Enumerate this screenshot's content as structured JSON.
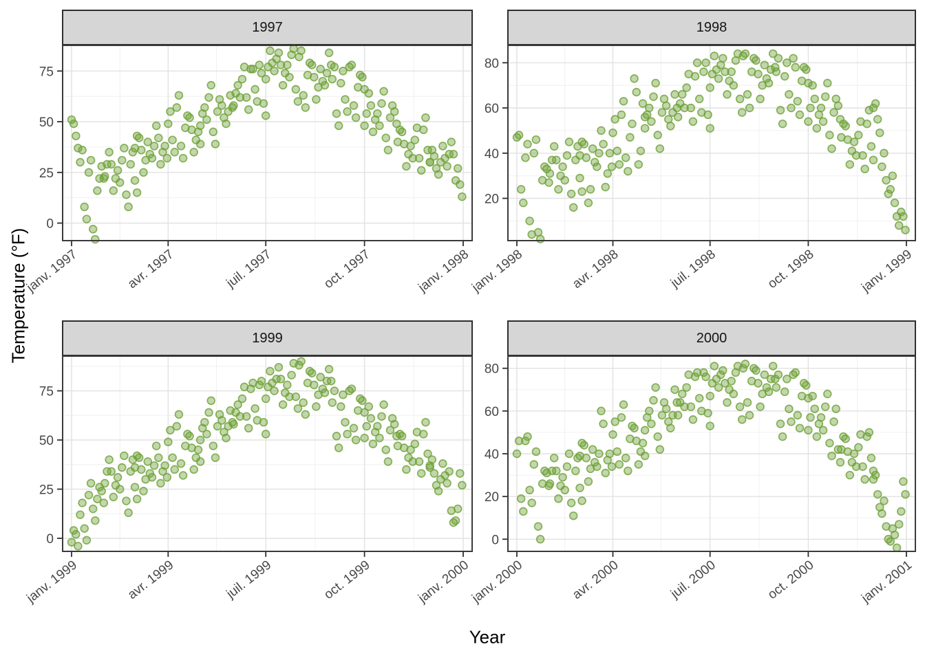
{
  "figure": {
    "kind": "faceted scatter plot (ggplot2 style)",
    "background": "#ffffff"
  },
  "theme": {
    "strip_fill": "#d6d6d6",
    "strip_border": "#2e2e2e",
    "panel_border": "#3a3a3a",
    "grid_major": "#e2e2e2",
    "grid_minor": "#f0f0f0",
    "tick_color": "#2f2f2f",
    "tick_label_color": "#474747",
    "point_color": "#6ea037",
    "point_fill_opacity": 0.42,
    "point_stroke_opacity": 0.8
  },
  "chart_data": {
    "type": "scatter",
    "title": "",
    "xlabel": "Year",
    "ylabel": "Temperature (°F)",
    "x_unit": "day_of_year",
    "legend": "none",
    "grid": "major and minor, light gray on white",
    "xlim": [
      -8,
      375
    ],
    "x_tick_days": [
      1,
      91,
      182,
      274,
      366
    ],
    "x_minor_days": [
      46,
      136,
      228,
      320
    ],
    "days": [
      1,
      5,
      9,
      13,
      17,
      21,
      25,
      29,
      32,
      36,
      40,
      44,
      48,
      52,
      56,
      60,
      60,
      64,
      68,
      72,
      76,
      80,
      84,
      88,
      91,
      95,
      99,
      103,
      107,
      111,
      115,
      119,
      121,
      125,
      129,
      133,
      137,
      141,
      145,
      149,
      152,
      156,
      160,
      164,
      168,
      172,
      176,
      180,
      182,
      186,
      190,
      194,
      198,
      202,
      206,
      210,
      213,
      217,
      221,
      225,
      229,
      233,
      237,
      241,
      244,
      248,
      252,
      256,
      260,
      264,
      268,
      272,
      274,
      278,
      282,
      286,
      290,
      294,
      298,
      302,
      305,
      309,
      313,
      317,
      321,
      325,
      329,
      333,
      335,
      339,
      343,
      347,
      351,
      355,
      359,
      363,
      3,
      7,
      11,
      15,
      19,
      23,
      27,
      31,
      34,
      38,
      42,
      46,
      50,
      54,
      58,
      62,
      62,
      66,
      70,
      74,
      78,
      82,
      86,
      90,
      93,
      97,
      101,
      105,
      109,
      113,
      117,
      121,
      123,
      127,
      131,
      135,
      139,
      143,
      147,
      151,
      154,
      158,
      162,
      166,
      170,
      174,
      178,
      182,
      184,
      188,
      192,
      196,
      200,
      204,
      208,
      212,
      215,
      219,
      223,
      227,
      231,
      235,
      239,
      243,
      246,
      250,
      254,
      258,
      262,
      266,
      270,
      274,
      276,
      280,
      284,
      288,
      292,
      296,
      300,
      304,
      307,
      311,
      315,
      319,
      323,
      327,
      331,
      335,
      337,
      341,
      345,
      349,
      353,
      357,
      361,
      365
    ],
    "facets": [
      {
        "label": "1997",
        "x_tick_labels": [
          "janv. 1997",
          "avr. 1997",
          "juil. 1997",
          "oct. 1997",
          "janv. 1998"
        ],
        "y_ticks": [
          0,
          25,
          50,
          75
        ],
        "ylim": [
          -9,
          88
        ],
        "temps": [
          51,
          43,
          30,
          8,
          25,
          -3,
          16,
          28,
          23,
          35,
          16,
          26,
          31,
          14,
          29,
          21,
          37,
          42,
          25,
          40,
          32,
          48,
          29,
          38,
          49,
          41,
          57,
          38,
          47,
          52,
          35,
          45,
          48,
          57,
          62,
          45,
          55,
          58,
          49,
          63,
          58,
          68,
          71,
          62,
          76,
          66,
          78,
          59,
          71,
          85,
          75,
          84,
          68,
          78,
          83,
          66,
          82,
          63,
          73,
          78,
          61,
          76,
          68,
          84,
          71,
          54,
          69,
          61,
          77,
          58,
          67,
          72,
          48,
          64,
          45,
          54,
          59,
          42,
          52,
          55,
          40,
          45,
          28,
          38,
          41,
          32,
          46,
          36,
          30,
          33,
          24,
          38,
          28,
          40,
          21,
          19,
          49,
          37,
          36,
          2,
          31,
          -8,
          22,
          22,
          29,
          29,
          22,
          20,
          37,
          8,
          35,
          15,
          43,
          36,
          31,
          34,
          38,
          42,
          35,
          32,
          55,
          35,
          63,
          32,
          53,
          46,
          41,
          39,
          54,
          51,
          68,
          39,
          61,
          52,
          55,
          57,
          64,
          62,
          77,
          56,
          76,
          60,
          74,
          53,
          77,
          79,
          81,
          78,
          74,
          72,
          86,
          60,
          85,
          57,
          79,
          72,
          67,
          70,
          74,
          78,
          77,
          48,
          75,
          55,
          78,
          52,
          73,
          66,
          54,
          58,
          51,
          48,
          65,
          36,
          58,
          49,
          46,
          39,
          34,
          32,
          47,
          26,
          52,
          30,
          36,
          27,
          30,
          32,
          34,
          34,
          27,
          13
        ]
      },
      {
        "label": "1998",
        "x_tick_labels": [
          "janv. 1998",
          "avr. 1998",
          "juil. 1998",
          "oct. 1998",
          "janv. 1999"
        ],
        "y_ticks": [
          20,
          40,
          60,
          80
        ],
        "ylim": [
          1,
          88
        ],
        "temps": [
          47,
          24,
          38,
          10,
          40,
          5,
          28,
          33,
          31,
          43,
          24,
          34,
          39,
          22,
          37,
          29,
          39,
          44,
          18,
          42,
          34,
          50,
          25,
          40,
          49,
          41,
          57,
          38,
          47,
          73,
          35,
          62,
          51,
          60,
          65,
          48,
          58,
          61,
          52,
          66,
          56,
          66,
          69,
          60,
          74,
          64,
          76,
          57,
          69,
          83,
          73,
          82,
          66,
          76,
          81,
          64,
          83,
          66,
          76,
          81,
          64,
          79,
          71,
          84,
          76,
          59,
          74,
          66,
          82,
          63,
          72,
          77,
          54,
          70,
          51,
          60,
          65,
          48,
          58,
          61,
          47,
          52,
          35,
          45,
          48,
          39,
          53,
          43,
          60,
          55,
          34,
          28,
          24,
          18,
          8,
          12,
          48,
          18,
          44,
          4,
          46,
          2,
          34,
          27,
          37,
          37,
          30,
          28,
          45,
          16,
          43,
          23,
          45,
          38,
          24,
          36,
          40,
          44,
          31,
          34,
          55,
          35,
          63,
          32,
          53,
          67,
          41,
          56,
          57,
          54,
          71,
          42,
          64,
          55,
          58,
          60,
          62,
          60,
          75,
          54,
          80,
          58,
          80,
          51,
          75,
          77,
          79,
          76,
          72,
          70,
          84,
          58,
          84,
          60,
          82,
          75,
          70,
          73,
          77,
          78,
          82,
          53,
          80,
          60,
          78,
          57,
          78,
          71,
          60,
          64,
          57,
          54,
          71,
          42,
          64,
          55,
          53,
          46,
          41,
          39,
          54,
          33,
          59,
          37,
          62,
          49,
          40,
          22,
          30,
          12,
          14,
          6
        ]
      },
      {
        "label": "1999",
        "x_tick_labels": [
          "janv. 1999",
          "avr. 1999",
          "juil. 1999",
          "oct. 1999",
          "janv. 2000"
        ],
        "y_ticks": [
          0,
          25,
          50,
          75
        ],
        "ylim": [
          -7,
          93
        ],
        "temps": [
          -2,
          2,
          12,
          5,
          22,
          15,
          20,
          24,
          28,
          40,
          21,
          31,
          36,
          19,
          34,
          26,
          36,
          41,
          24,
          39,
          31,
          47,
          28,
          37,
          49,
          41,
          57,
          38,
          47,
          52,
          35,
          45,
          50,
          59,
          64,
          47,
          57,
          60,
          51,
          65,
          58,
          68,
          71,
          62,
          76,
          66,
          78,
          59,
          71,
          85,
          75,
          87,
          68,
          78,
          83,
          72,
          88,
          69,
          79,
          84,
          67,
          82,
          74,
          86,
          69,
          52,
          67,
          59,
          75,
          56,
          65,
          70,
          51,
          67,
          48,
          57,
          62,
          45,
          55,
          58,
          47,
          52,
          35,
          45,
          48,
          39,
          53,
          43,
          36,
          33,
          24,
          38,
          28,
          14,
          9,
          33,
          4,
          -4,
          18,
          -1,
          28,
          9,
          26,
          18,
          34,
          34,
          27,
          25,
          42,
          13,
          40,
          20,
          42,
          35,
          30,
          33,
          37,
          41,
          34,
          31,
          55,
          35,
          63,
          32,
          53,
          46,
          41,
          39,
          56,
          53,
          70,
          41,
          63,
          54,
          57,
          59,
          64,
          62,
          77,
          56,
          79,
          60,
          80,
          53,
          77,
          79,
          81,
          81,
          74,
          72,
          89,
          66,
          90,
          63,
          85,
          78,
          73,
          76,
          80,
          80,
          75,
          46,
          73,
          53,
          76,
          50,
          71,
          64,
          57,
          61,
          54,
          51,
          68,
          39,
          61,
          52,
          53,
          46,
          41,
          39,
          54,
          33,
          59,
          37,
          40,
          27,
          30,
          32,
          34,
          8,
          15,
          27
        ]
      },
      {
        "label": "2000",
        "x_tick_labels": [
          "janv. 2000",
          "avr. 2000",
          "juil. 2000",
          "oct. 2000",
          "janv. 2001"
        ],
        "y_ticks": [
          0,
          20,
          40,
          60,
          80
        ],
        "ylim": [
          -6,
          86
        ],
        "temps": [
          40,
          19,
          46,
          23,
          35,
          6,
          26,
          31,
          26,
          38,
          19,
          29,
          34,
          17,
          32,
          24,
          39,
          44,
          27,
          42,
          34,
          60,
          31,
          40,
          49,
          41,
          57,
          38,
          47,
          52,
          35,
          45,
          51,
          60,
          65,
          48,
          58,
          61,
          52,
          70,
          58,
          68,
          71,
          62,
          76,
          66,
          78,
          59,
          67,
          81,
          71,
          79,
          64,
          74,
          78,
          62,
          80,
          64,
          74,
          79,
          62,
          77,
          69,
          81,
          71,
          54,
          69,
          61,
          77,
          58,
          67,
          72,
          51,
          67,
          48,
          57,
          62,
          45,
          55,
          42,
          42,
          47,
          30,
          40,
          43,
          34,
          48,
          38,
          28,
          21,
          12,
          6,
          -1,
          2,
          7,
          27,
          46,
          13,
          48,
          17,
          41,
          0,
          32,
          25,
          32,
          32,
          25,
          23,
          40,
          11,
          38,
          18,
          45,
          38,
          33,
          36,
          40,
          54,
          37,
          34,
          55,
          35,
          63,
          32,
          53,
          46,
          41,
          39,
          57,
          54,
          71,
          42,
          64,
          55,
          58,
          64,
          64,
          62,
          77,
          56,
          78,
          60,
          76,
          53,
          73,
          75,
          77,
          73,
          70,
          68,
          81,
          56,
          82,
          58,
          80,
          73,
          68,
          71,
          75,
          75,
          77,
          48,
          75,
          55,
          78,
          52,
          73,
          66,
          57,
          61,
          54,
          51,
          68,
          39,
          61,
          36,
          48,
          41,
          36,
          34,
          49,
          28,
          50,
          32,
          30,
          15,
          18,
          0,
          5,
          -4,
          13,
          21
        ]
      }
    ]
  }
}
